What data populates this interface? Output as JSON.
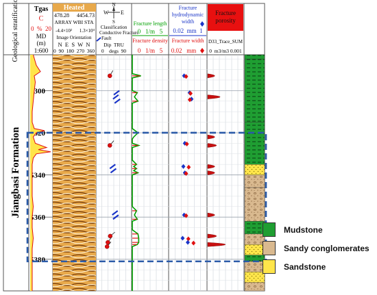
{
  "chart_data": {
    "type": "well_log",
    "depth_axis": {
      "label": "MD (m)",
      "scale": "1:600",
      "ticks": [
        5300,
        5320,
        5340,
        5360,
        5380
      ],
      "range": [
        5283,
        5395
      ]
    },
    "formation": "Jiangbasi Formation",
    "stratification_header": "Geological stratification",
    "zone": {
      "top": 5320,
      "bottom": 5381,
      "style": "dashed blue box"
    },
    "tracks": {
      "gr": {
        "title": "Tgas",
        "unit": "C",
        "scale_text": "0  %  20",
        "md_label": "MD",
        "md_unit": "(m)",
        "scale": "1:600",
        "curve": [
          [
            5283,
            3
          ],
          [
            5288,
            6
          ],
          [
            5291,
            10
          ],
          [
            5293,
            4
          ],
          [
            5296,
            5
          ],
          [
            5300,
            4
          ],
          [
            5305,
            3
          ],
          [
            5310,
            2
          ],
          [
            5315,
            2
          ],
          [
            5318,
            4
          ],
          [
            5319,
            14
          ],
          [
            5320,
            6
          ],
          [
            5322,
            3
          ],
          [
            5325,
            5
          ],
          [
            5327,
            16
          ],
          [
            5328,
            8
          ],
          [
            5329,
            20
          ],
          [
            5330,
            6
          ],
          [
            5332,
            3
          ],
          [
            5335,
            2
          ],
          [
            5340,
            2
          ],
          [
            5345,
            2
          ],
          [
            5350,
            2
          ],
          [
            5355,
            3
          ],
          [
            5360,
            2
          ],
          [
            5365,
            2
          ],
          [
            5370,
            3
          ],
          [
            5375,
            2
          ],
          [
            5380,
            2
          ],
          [
            5390,
            2
          ],
          [
            5395,
            2
          ]
        ]
      },
      "image": {
        "title": "Heated",
        "range_min": "478.28",
        "range_max": "4454.73",
        "subtitle": "ARRAY WBI STA",
        "orientation_label": "Image Orientation",
        "scale_a": "-4.4×10²",
        "scale_b": "1.3×10⁴",
        "azimuth_labels": "N  E  S  W  N",
        "azimuth_scale": "0  90  180  270  360"
      },
      "dip": {
        "compass_n": "N",
        "compass_w": "W",
        "compass_e": "E",
        "compass_s": "S",
        "classification": "Classification",
        "conductive": "Conductive Fracture",
        "fault": "Fault",
        "dip_label": "Dip  TRU",
        "scale": "0    degs  90",
        "tadpoles": [
          {
            "depth": 5293,
            "dip": 35,
            "azimuth": 30,
            "kind": "conductive"
          },
          {
            "depth": 5301,
            "dip": 52,
            "azimuth": 220,
            "kind": "fault"
          },
          {
            "depth": 5303,
            "dip": 50,
            "azimuth": 225,
            "kind": "fault"
          },
          {
            "depth": 5305,
            "dip": 54,
            "azimuth": 215,
            "kind": "fault"
          },
          {
            "depth": 5326,
            "dip": 35,
            "azimuth": 40,
            "kind": "conductive"
          },
          {
            "depth": 5336,
            "dip": 42,
            "azimuth": 215,
            "kind": "fault"
          },
          {
            "depth": 5338,
            "dip": 44,
            "azimuth": 220,
            "kind": "fault"
          },
          {
            "depth": 5358,
            "dip": 48,
            "azimuth": 220,
            "kind": "fault"
          },
          {
            "depth": 5360,
            "dip": 50,
            "azimuth": 215,
            "kind": "fault"
          },
          {
            "depth": 5369,
            "dip": 36,
            "azimuth": 50,
            "kind": "conductive"
          },
          {
            "depth": 5372,
            "dip": 30,
            "azimuth": 35,
            "kind": "conductive"
          },
          {
            "depth": 5374,
            "dip": 28,
            "azimuth": 40,
            "kind": "conductive"
          }
        ]
      },
      "fracture_length_density": {
        "title_length": "Fracture length",
        "scale_length": "0   1/m   5",
        "title_density": "Fracture density",
        "scale_density": "0   1/m   5",
        "length_curve": [
          [
            5283,
            0
          ],
          [
            5292,
            0
          ],
          [
            5293,
            1.2
          ],
          [
            5294,
            0
          ],
          [
            5300,
            0
          ],
          [
            5301,
            0.7
          ],
          [
            5303,
            0.3
          ],
          [
            5305,
            0.8
          ],
          [
            5306,
            0
          ],
          [
            5318,
            0
          ],
          [
            5320,
            0.8
          ],
          [
            5322,
            0.2
          ],
          [
            5323,
            0
          ],
          [
            5325,
            0
          ],
          [
            5326,
            0.9
          ],
          [
            5327,
            0
          ],
          [
            5333,
            0
          ],
          [
            5335,
            0.6
          ],
          [
            5336,
            0.2
          ],
          [
            5337,
            0.6
          ],
          [
            5338,
            0.2
          ],
          [
            5339,
            0.8
          ],
          [
            5340,
            0
          ],
          [
            5355,
            0
          ],
          [
            5357,
            0.6
          ],
          [
            5359,
            0.3
          ],
          [
            5361,
            0.7
          ],
          [
            5362,
            0
          ],
          [
            5366,
            0
          ],
          [
            5368,
            0.8
          ],
          [
            5370,
            0.9
          ],
          [
            5372,
            0.9
          ],
          [
            5373,
            0.7
          ],
          [
            5374,
            0
          ],
          [
            5395,
            0
          ]
        ]
      },
      "hydro_width": {
        "title": "Fracture hydrodynamic width",
        "scale_hydro": "0.02  mm  1",
        "title_width": "Fracture width",
        "scale_width": "0.02   mm",
        "points": [
          {
            "depth": 5293,
            "hydro": 0.4,
            "width": 0.38
          },
          {
            "depth": 5301,
            "hydro": 0.55,
            "width": 0.5
          },
          {
            "depth": 5304,
            "hydro": 0.6,
            "width": 0.48
          },
          {
            "depth": 5325,
            "hydro": 0.42,
            "width": 0.4
          },
          {
            "depth": 5336,
            "hydro": 0.38,
            "width": 0.45
          },
          {
            "depth": 5339,
            "hydro": 0.42,
            "width": 0.38
          },
          {
            "depth": 5359,
            "hydro": 0.4,
            "width": 0.38
          },
          {
            "depth": 5370,
            "hydro": 0.36,
            "width": 0.44
          },
          {
            "depth": 5372,
            "hydro": 0.5,
            "width": 0.58
          }
        ]
      },
      "porosity": {
        "title": "Fracture porosity",
        "curve_label": "D33_Trace_SUM",
        "scale": "0  m3/m3 0.001",
        "peaks": [
          {
            "depth": 5293,
            "value": 0.0004
          },
          {
            "depth": 5303,
            "value": 0.0007
          },
          {
            "depth": 5322,
            "value": 0.0004
          },
          {
            "depth": 5326,
            "value": 0.0005
          },
          {
            "depth": 5336,
            "value": 0.0004
          },
          {
            "depth": 5339,
            "value": 0.0004
          },
          {
            "depth": 5359,
            "value": 0.0004
          },
          {
            "depth": 5369,
            "value": 0.0005
          },
          {
            "depth": 5373,
            "value": 0.001
          }
        ]
      },
      "lithology": {
        "beds": [
          {
            "top": 5283,
            "bottom": 5285,
            "lith": "mudstone"
          },
          {
            "top": 5285,
            "bottom": 5315,
            "lith": "mudstone"
          },
          {
            "top": 5315,
            "bottom": 5335,
            "lith": "mudstone"
          },
          {
            "top": 5335,
            "bottom": 5340,
            "lith": "sandstone"
          },
          {
            "top": 5340,
            "bottom": 5346,
            "lith": "sandy_conglomerate"
          },
          {
            "top": 5346,
            "bottom": 5362,
            "lith": "sandy_conglomerate"
          },
          {
            "top": 5362,
            "bottom": 5368,
            "lith": "mudstone"
          },
          {
            "top": 5368,
            "bottom": 5373,
            "lith": "sandy_conglomerate"
          },
          {
            "top": 5373,
            "bottom": 5378,
            "lith": "sandstone"
          },
          {
            "top": 5378,
            "bottom": 5381,
            "lith": "mudstone"
          },
          {
            "top": 5381,
            "bottom": 5386,
            "lith": "sandy_conglomerate"
          },
          {
            "top": 5386,
            "bottom": 5391,
            "lith": "sandstone"
          },
          {
            "top": 5391,
            "bottom": 5395,
            "lith": "sandy_conglomerate"
          }
        ]
      }
    },
    "legend": [
      {
        "label": "Mudstone",
        "pattern": "mudstone"
      },
      {
        "label": "Sandy conglomerates",
        "pattern": "sandy_conglomerate"
      },
      {
        "label": "Sandstone",
        "pattern": "sandstone"
      }
    ],
    "colors": {
      "mud": "#1f9e32",
      "sand": "#ffe54a",
      "cong": "#d2b48c",
      "box": "#2a5aa8",
      "red": "#e01010",
      "green": "#00a000",
      "blue": "#1a35c8"
    }
  }
}
